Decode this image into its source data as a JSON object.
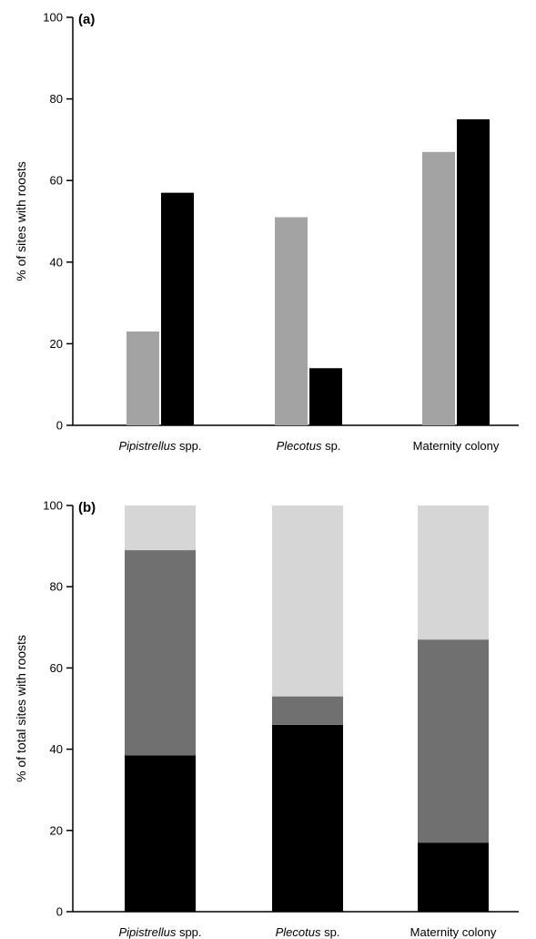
{
  "chart_data": [
    {
      "panel_label": "(a)",
      "type": "bar",
      "categories": [
        {
          "italic": "Pipistrellus",
          "rest": " spp."
        },
        {
          "italic": "Plecotus",
          "rest": " sp."
        },
        {
          "italic": "",
          "rest": "Maternity colony"
        }
      ],
      "series": [
        {
          "color": "#a3a3a3",
          "values": [
            23,
            51,
            67
          ]
        },
        {
          "color": "#000000",
          "values": [
            57,
            14,
            75
          ]
        }
      ],
      "ylabel": "% of sites with roosts",
      "ylim": [
        0,
        100
      ],
      "yticks": [
        "0",
        "20",
        "40",
        "60",
        "80",
        "100"
      ],
      "grid": false,
      "legend": "none"
    },
    {
      "panel_label": "(b)",
      "type": "bar",
      "stacked": true,
      "categories": [
        {
          "italic": "Pipistrellus",
          "rest": " spp."
        },
        {
          "italic": "Plecotus",
          "rest": " sp."
        },
        {
          "italic": "",
          "rest": "Maternity colony"
        }
      ],
      "series": [
        {
          "color": "#000000",
          "values": [
            38.5,
            46,
            17
          ]
        },
        {
          "color": "#707070",
          "values": [
            50.5,
            7,
            50
          ]
        },
        {
          "color": "#d6d6d6",
          "values": [
            11,
            47,
            33
          ]
        }
      ],
      "ylabel": "% of total sites with roosts",
      "ylim": [
        0,
        100
      ],
      "yticks": [
        "0",
        "20",
        "40",
        "60",
        "80",
        "100"
      ],
      "grid": false,
      "legend": "none"
    }
  ]
}
